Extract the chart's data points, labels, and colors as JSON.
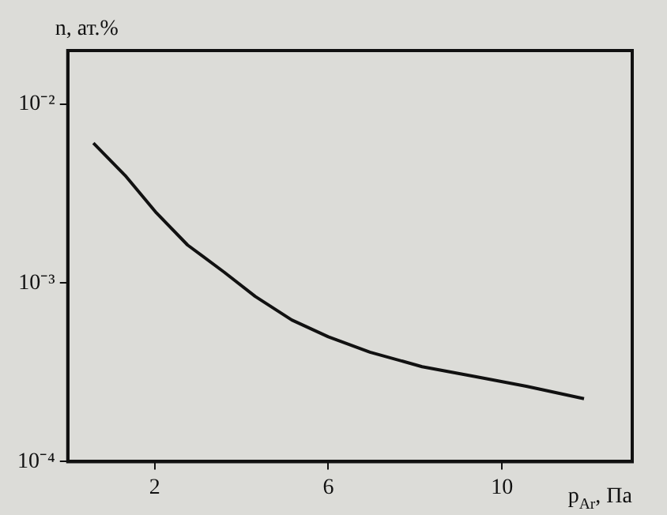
{
  "chart_data": {
    "type": "line",
    "xlabel": "p$_{Ar}$, Па",
    "ylabel": "n, ат.%",
    "log": "y",
    "legend": false,
    "grid": false,
    "marker": "none",
    "xlim": [
      0,
      13
    ],
    "xticks": [
      2,
      6,
      10
    ],
    "ylim": [
      0.0001,
      0.02
    ],
    "yticks": [
      {
        "value": 0.0001,
        "label": "10⁻⁴"
      },
      {
        "value": 0.001,
        "label": "10⁻³"
      },
      {
        "value": 0.01,
        "label": "10⁻²"
      }
    ],
    "series": [
      {
        "color": "#111111",
        "x": [
          0.59,
          1.32,
          2.04,
          2.76,
          3.6,
          4.32,
          5.16,
          6.0,
          6.96,
          8.16,
          9.36,
          10.56,
          11.89
        ],
        "values": [
          0.00607,
          0.004,
          0.00247,
          0.00163,
          0.00115,
          0.00084,
          0.00062,
          0.0005,
          0.00041,
          0.00034,
          0.0003,
          0.000264,
          0.000225
        ]
      }
    ]
  }
}
